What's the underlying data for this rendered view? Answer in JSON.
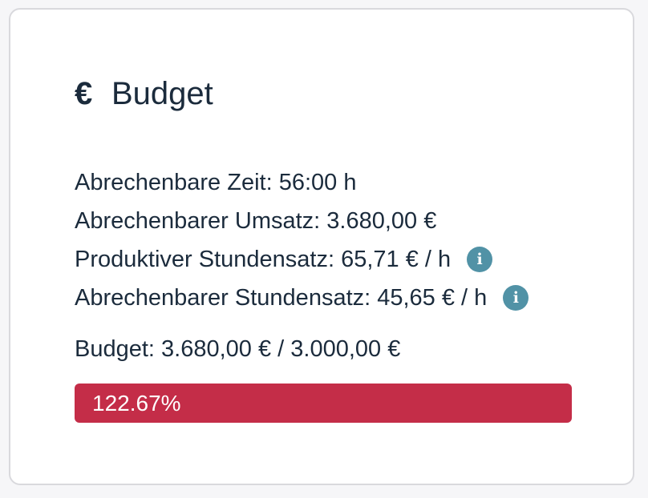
{
  "card": {
    "title_icon": "€",
    "title_icon_name": "euro-icon",
    "title": "Budget"
  },
  "stats": [
    {
      "label": "Abrechenbare Zeit: 56:00 h",
      "info": false
    },
    {
      "label": "Abrechenbarer Umsatz: 3.680,00 €",
      "info": false
    },
    {
      "label": "Produktiver Stundensatz: 65,71 € / h",
      "info": true
    },
    {
      "label": "Abrechenbarer Stundensatz: 45,65 € / h",
      "info": true
    }
  ],
  "info_icon_glyph": "i",
  "budget": {
    "label": "Budget: 3.680,00 € / 3.000,00 €",
    "progress_text": "122.67%",
    "progress_percent": 122.67,
    "progress_color": "#c42d48",
    "info_color": "#5192a6"
  }
}
